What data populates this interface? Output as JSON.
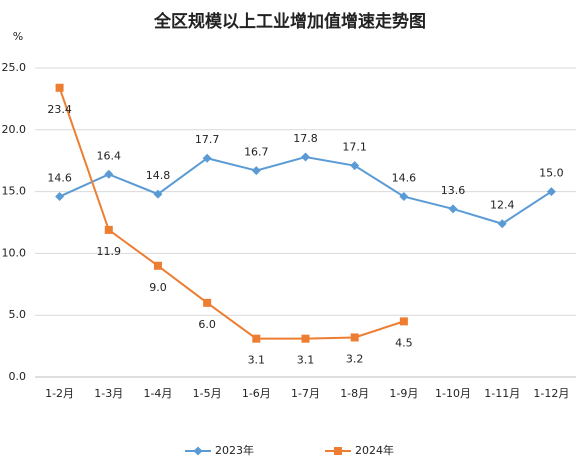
{
  "chart_data": {
    "type": "line",
    "title": "全区规模以上工业增加值增速走势图",
    "y_label": "%",
    "categories": [
      "1-2月",
      "1-3月",
      "1-4月",
      "1-5月",
      "1-6月",
      "1-7月",
      "1-8月",
      "1-9月",
      "1-10月",
      "1-11月",
      "1-12月"
    ],
    "series": [
      {
        "name": "2023年",
        "color": "#5b9bd5",
        "marker": "diamond",
        "values": [
          14.6,
          16.4,
          14.8,
          17.7,
          16.7,
          17.8,
          17.1,
          14.6,
          13.6,
          12.4,
          15.0
        ],
        "value_labels": [
          "14.6",
          "16.4",
          "14.8",
          "17.7",
          "16.7",
          "17.8",
          "17.1",
          "14.6",
          "13.6",
          "12.4",
          "15.0"
        ]
      },
      {
        "name": "2024年",
        "color": "#ed7d31",
        "marker": "square",
        "values": [
          23.4,
          11.9,
          9.0,
          6.0,
          3.1,
          3.1,
          3.2,
          4.5,
          null,
          null,
          null
        ],
        "value_labels": [
          "23.4",
          "11.9",
          "9.0",
          "6.0",
          "3.1",
          "3.1",
          "3.2",
          "4.5",
          null,
          null,
          null
        ]
      }
    ],
    "ylim": [
      0,
      25
    ],
    "yticks": [
      {
        "value": 0,
        "label": "0.0"
      },
      {
        "value": 5,
        "label": "5.0"
      },
      {
        "value": 10,
        "label": "10.0"
      },
      {
        "value": 15,
        "label": "15.0"
      },
      {
        "value": 20,
        "label": "20.0"
      },
      {
        "value": 25,
        "label": "25.0"
      }
    ],
    "grid": true,
    "legend": "bottom"
  }
}
